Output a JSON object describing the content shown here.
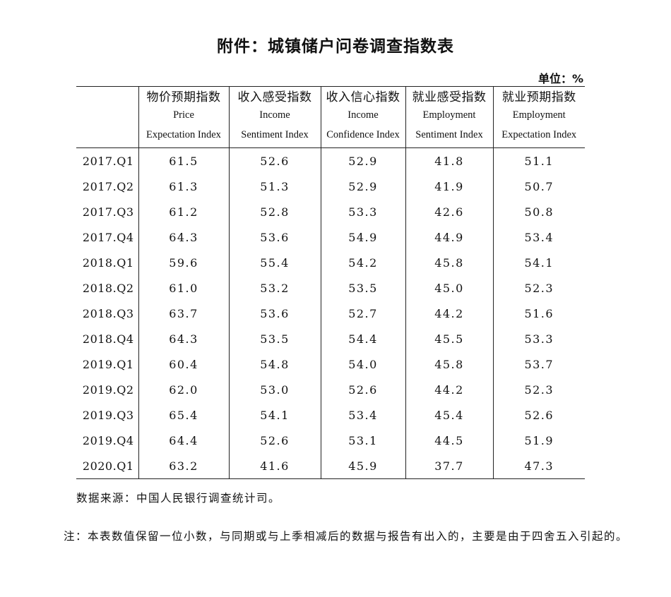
{
  "title": "附件：城镇储户问卷调查指数表",
  "unit": "单位：%",
  "table": {
    "columns": [
      {
        "zh": "",
        "en1": "",
        "en2": ""
      },
      {
        "zh": "物价预期指数",
        "en1": "Price",
        "en2": "Expectation Index"
      },
      {
        "zh": "收入感受指数",
        "en1": "Income",
        "en2": "Sentiment Index"
      },
      {
        "zh": "收入信心指数",
        "en1": "Income",
        "en2": "Confidence Index"
      },
      {
        "zh": "就业感受指数",
        "en1": "Employment",
        "en2": "Sentiment Index"
      },
      {
        "zh": "就业预期指数",
        "en1": "Employment",
        "en2": "Expectation Index"
      }
    ],
    "rows": [
      [
        "2017.Q1",
        "61.5",
        "52.6",
        "52.9",
        "41.8",
        "51.1"
      ],
      [
        "2017.Q2",
        "61.3",
        "51.3",
        "52.9",
        "41.9",
        "50.7"
      ],
      [
        "2017.Q3",
        "61.2",
        "52.8",
        "53.3",
        "42.6",
        "50.8"
      ],
      [
        "2017.Q4",
        "64.3",
        "53.6",
        "54.9",
        "44.9",
        "53.4"
      ],
      [
        "2018.Q1",
        "59.6",
        "55.4",
        "54.2",
        "45.8",
        "54.1"
      ],
      [
        "2018.Q2",
        "61.0",
        "53.2",
        "53.5",
        "45.0",
        "52.3"
      ],
      [
        "2018.Q3",
        "63.7",
        "53.6",
        "52.7",
        "44.2",
        "51.6"
      ],
      [
        "2018.Q4",
        "64.3",
        "53.5",
        "54.4",
        "45.5",
        "53.3"
      ],
      [
        "2019.Q1",
        "60.4",
        "54.8",
        "54.0",
        "45.8",
        "53.7"
      ],
      [
        "2019.Q2",
        "62.0",
        "53.0",
        "52.6",
        "44.2",
        "52.3"
      ],
      [
        "2019.Q3",
        "65.4",
        "54.1",
        "53.4",
        "45.4",
        "52.6"
      ],
      [
        "2019.Q4",
        "64.4",
        "52.6",
        "53.1",
        "44.5",
        "51.9"
      ],
      [
        "2020.Q1",
        "63.2",
        "41.6",
        "45.9",
        "37.7",
        "47.3"
      ]
    ]
  },
  "source": "数据来源：中国人民银行调查统计司。",
  "note": "注：本表数值保留一位小数，与同期或与上季相减后的数据与报告有出入的，主要是由于四舍五入引起的。"
}
